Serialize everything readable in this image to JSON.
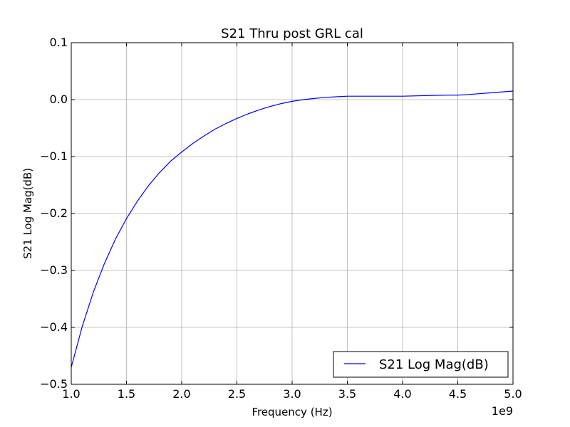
{
  "chart_data": {
    "type": "line",
    "title": "S21 Thru post GRL cal",
    "xlabel": "Frequency (Hz)",
    "ylabel": "S21 Log Mag(dB)",
    "x_offset_text": "1e9",
    "xlim": [
      1.0,
      5.0
    ],
    "ylim": [
      -0.5,
      0.1
    ],
    "x_ticks": [
      1.0,
      1.5,
      2.0,
      2.5,
      3.0,
      3.5,
      4.0,
      4.5,
      5.0
    ],
    "x_tick_labels": [
      "1.0",
      "1.5",
      "2.0",
      "2.5",
      "3.0",
      "3.5",
      "4.0",
      "4.5",
      "5.0"
    ],
    "y_ticks": [
      -0.5,
      -0.4,
      -0.3,
      -0.2,
      -0.1,
      0.0,
      0.1
    ],
    "y_tick_labels": [
      "−0.5",
      "−0.4",
      "−0.3",
      "−0.2",
      "−0.1",
      "0.0",
      "0.1"
    ],
    "grid": true,
    "legend": {
      "position": "lower-right"
    },
    "series": [
      {
        "name": "S21 Log Mag(dB)",
        "color": "#0000ff",
        "x": [
          1.0,
          1.1,
          1.2,
          1.3,
          1.4,
          1.5,
          1.6,
          1.7,
          1.8,
          1.9,
          2.0,
          2.1,
          2.2,
          2.3,
          2.4,
          2.5,
          2.6,
          2.7,
          2.8,
          2.9,
          3.0,
          3.1,
          3.2,
          3.3,
          3.4,
          3.5,
          3.6,
          3.8,
          4.0,
          4.2,
          4.4,
          4.5,
          4.6,
          4.8,
          5.0
        ],
        "y": [
          -0.47,
          -0.398,
          -0.338,
          -0.288,
          -0.245,
          -0.209,
          -0.178,
          -0.151,
          -0.128,
          -0.108,
          -0.092,
          -0.077,
          -0.064,
          -0.052,
          -0.042,
          -0.033,
          -0.025,
          -0.018,
          -0.012,
          -0.007,
          -0.003,
          0.0,
          0.002,
          0.004,
          0.005,
          0.006,
          0.006,
          0.006,
          0.006,
          0.007,
          0.008,
          0.008,
          0.009,
          0.012,
          0.015
        ]
      }
    ]
  }
}
